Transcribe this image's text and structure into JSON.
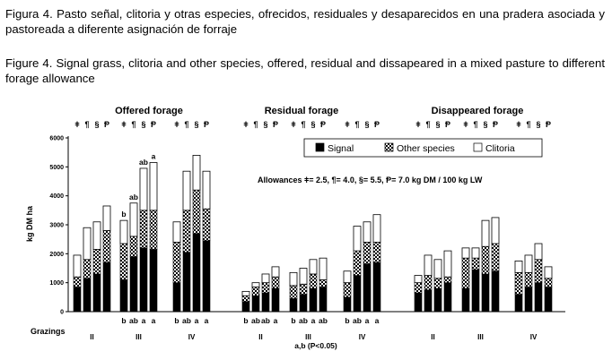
{
  "captions": {
    "spanish": "Figura 4. Pasto señal, clitoria y otras especies, ofrecidos, residuales y desaparecidos en una pradera asociada y pastoreada a diferente asignación de forraje",
    "english": "Figure 4. Signal grass, clitoria and other species, offered, residual and dissapeared in a mixed pasture to different forage allowance"
  },
  "chart_data": {
    "type": "bar",
    "stacked": true,
    "ylabel": "kg DM ha",
    "xlabel": "Grazings",
    "ylim": [
      0,
      6000
    ],
    "yticks": [
      0,
      1000,
      2000,
      3000,
      4000,
      5000,
      6000
    ],
    "grid": false,
    "legend": {
      "placement": "top-right",
      "entries": [
        "Signal",
        "Other species",
        "Clitoria"
      ]
    },
    "allowance_note": "Allowances ǂ= 2.5,  ¶= 4.0,  §= 5.5,  Ᵽ= 7.0 kg DM / 100 kg  LW",
    "significance_note": "a,b (P<0.05)",
    "allowance_symbols": [
      "ǂ",
      "¶",
      "§",
      "Ᵽ"
    ],
    "colors": {
      "signal": "#000000",
      "other": "#ffffff",
      "clitoria": "#ffffff",
      "axis": "#000000"
    },
    "panels": [
      {
        "title": "Offered forage",
        "grazings": [
          {
            "label": "II",
            "letters": [],
            "top_letters": [],
            "series": {
              "signal": [
                850,
                1150,
                1300,
                1700
              ],
              "other": [
                350,
                650,
                850,
                1100
              ],
              "clitoria": [
                750,
                1100,
                950,
                850
              ]
            }
          },
          {
            "label": "III",
            "letters": [
              "b",
              "ab",
              "a",
              "a"
            ],
            "top_letters": [
              "b",
              "ab",
              "ab",
              "a"
            ],
            "series": {
              "signal": [
                1100,
                1900,
                2200,
                2150
              ],
              "other": [
                1250,
                700,
                1300,
                1350
              ],
              "clitoria": [
                800,
                1150,
                1450,
                1650
              ]
            }
          },
          {
            "label": "IV",
            "letters": [
              "b",
              "ab",
              "a",
              "a"
            ],
            "top_letters": [],
            "series": {
              "signal": [
                1000,
                2050,
                2700,
                2450
              ],
              "other": [
                1400,
                1450,
                1500,
                1100
              ],
              "clitoria": [
                700,
                1350,
                1200,
                1300
              ]
            }
          }
        ]
      },
      {
        "title": "Residual forage",
        "grazings": [
          {
            "label": "II",
            "letters": [
              "b",
              "ab",
              "ab",
              "a"
            ],
            "top_letters": [],
            "series": {
              "signal": [
                350,
                550,
                650,
                800
              ],
              "other": [
                200,
                300,
                350,
                400
              ],
              "clitoria": [
                150,
                150,
                300,
                350
              ]
            }
          },
          {
            "label": "III",
            "letters": [
              "b",
              "ab",
              "a",
              "ab"
            ],
            "top_letters": [],
            "series": {
              "signal": [
                450,
                600,
                800,
                850
              ],
              "other": [
                450,
                350,
                500,
                250
              ],
              "clitoria": [
                450,
                550,
                500,
                750
              ]
            }
          },
          {
            "label": "IV",
            "letters": [
              "b",
              "ab",
              "a",
              "a"
            ],
            "top_letters": [],
            "series": {
              "signal": [
                500,
                1250,
                1650,
                1700
              ],
              "other": [
                500,
                850,
                750,
                700
              ],
              "clitoria": [
                400,
                850,
                700,
                950
              ]
            }
          }
        ]
      },
      {
        "title": "Disappeared forage",
        "grazings": [
          {
            "label": "II",
            "letters": [],
            "top_letters": [],
            "series": {
              "signal": [
                650,
                750,
                800,
                1000
              ],
              "other": [
                350,
                500,
                350,
                200
              ],
              "clitoria": [
                250,
                700,
                650,
                900
              ]
            }
          },
          {
            "label": "III",
            "letters": [],
            "top_letters": [],
            "series": {
              "signal": [
                800,
                1450,
                1300,
                1400
              ],
              "other": [
                1050,
                400,
                950,
                950
              ],
              "clitoria": [
                350,
                350,
                900,
                900
              ]
            }
          },
          {
            "label": "IV",
            "letters": [],
            "top_letters": [],
            "series": {
              "signal": [
                600,
                850,
                1000,
                850
              ],
              "other": [
                750,
                500,
                800,
                300
              ],
              "clitoria": [
                400,
                600,
                550,
                400
              ]
            }
          }
        ]
      }
    ]
  }
}
